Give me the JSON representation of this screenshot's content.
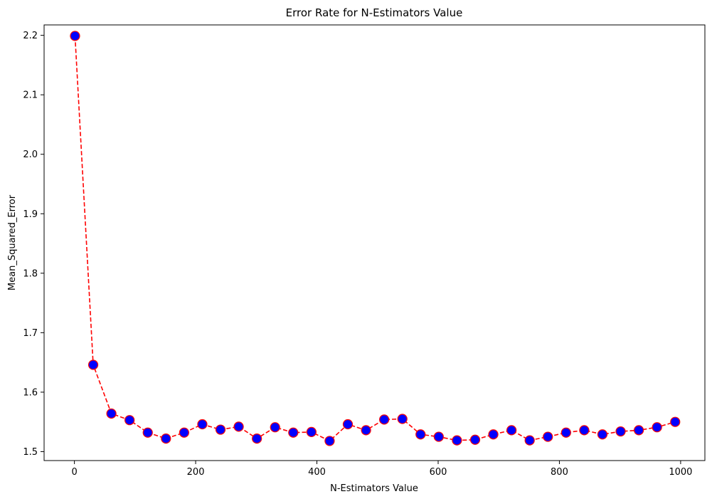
{
  "chart_data": {
    "type": "line",
    "title": "Error Rate for N-Estimators Value",
    "xlabel": "N-Estimators Value",
    "ylabel": "Mean_Squared_Error",
    "xlim": [
      -50,
      1040
    ],
    "ylim": [
      1.485,
      2.2175
    ],
    "xticks": [
      0,
      200,
      400,
      600,
      800,
      1000
    ],
    "xtick_labels": [
      "0",
      "200",
      "400",
      "600",
      "800",
      "1000"
    ],
    "yticks": [
      1.5,
      1.6,
      1.7,
      1.8,
      1.9,
      2.0,
      2.1,
      2.2
    ],
    "ytick_labels": [
      "1.5",
      "1.6",
      "1.7",
      "1.8",
      "1.9",
      "2.0",
      "2.1",
      "2.2"
    ],
    "grid": false,
    "series": [
      {
        "x": [
          1,
          31,
          61,
          91,
          121,
          151,
          181,
          211,
          241,
          271,
          301,
          331,
          361,
          391,
          421,
          451,
          481,
          511,
          541,
          571,
          601,
          631,
          661,
          691,
          721,
          751,
          781,
          811,
          841,
          871,
          901,
          931,
          961,
          991
        ],
        "values": [
          2.199,
          1.646,
          1.564,
          1.553,
          1.532,
          1.522,
          1.532,
          1.546,
          1.537,
          1.542,
          1.522,
          1.541,
          1.532,
          1.533,
          1.518,
          1.546,
          1.536,
          1.554,
          1.555,
          1.529,
          1.525,
          1.519,
          1.52,
          1.529,
          1.536,
          1.519,
          1.525,
          1.532,
          1.536,
          1.529,
          1.534,
          1.536,
          1.541,
          1.55
        ],
        "line_color": "#ff0000",
        "line_style": "dashed",
        "marker": "circle",
        "marker_face_color": "#0000ff",
        "marker_edge_color": "#ff0000"
      }
    ]
  }
}
